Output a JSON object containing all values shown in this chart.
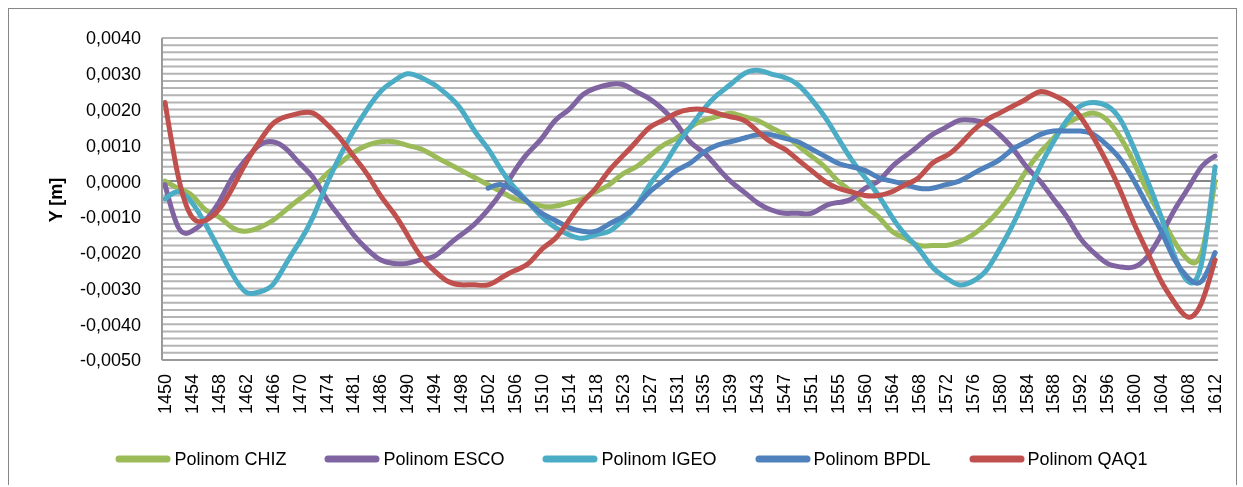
{
  "chart_data": {
    "type": "line",
    "ylabel": "Y [m]",
    "categories": [
      "1450",
      null,
      "1454",
      null,
      "1458",
      null,
      "1462",
      null,
      "1466",
      null,
      "1470",
      null,
      "1474",
      null,
      "1481",
      null,
      "1486",
      null,
      "1490",
      null,
      "1494",
      null,
      "1498",
      null,
      "1502",
      null,
      "1506",
      null,
      "1510",
      null,
      "1514",
      null,
      "1518",
      null,
      "1523",
      null,
      "1527",
      null,
      "1531",
      null,
      "1535",
      null,
      "1539",
      null,
      "1543",
      null,
      "1547",
      null,
      "1551",
      null,
      "1555",
      null,
      "1560",
      null,
      "1564",
      null,
      "1568",
      null,
      "1572",
      null,
      "1576",
      null,
      "1580",
      null,
      "1584",
      null,
      "1588",
      null,
      "1592",
      null,
      "1596",
      null,
      "1600",
      null,
      "1604",
      null,
      "1608",
      null,
      "1612"
    ],
    "series": [
      {
        "name": "Polinom CHIZ",
        "color": "#9bbb59",
        "values": [
          0,
          -0.0002,
          -0.0004,
          -0.0008,
          -0.001,
          -0.0013,
          -0.0014,
          -0.0013,
          -0.0011,
          -0.0008,
          -0.0005,
          -0.0002,
          0.0002,
          0.0005,
          0.0008,
          0.001,
          0.0011,
          0.0011,
          0.001,
          0.0009,
          0.0007,
          0.0005,
          0.0003,
          0.0001,
          -0.0001,
          -0.0003,
          -0.0005,
          -0.0006,
          -0.0007,
          -0.0007,
          -0.0006,
          -0.0005,
          -0.0003,
          -0.0001,
          0.0002,
          0.0004,
          0.0007,
          0.001,
          0.0012,
          0.0015,
          0.0017,
          0.0018,
          0.0019,
          0.0018,
          0.0017,
          0.0015,
          0.0013,
          0.001,
          0.0007,
          0.0004,
          0,
          -0.0003,
          -0.0007,
          -0.001,
          -0.0014,
          -0.0016,
          -0.0018,
          -0.0018,
          -0.0018,
          -0.0017,
          -0.0015,
          -0.0012,
          -0.0008,
          -0.0003,
          0.0003,
          0.0008,
          0.0012,
          0.0016,
          0.0018,
          0.0019,
          0.0017,
          0.0012,
          0.0005,
          -0.0003,
          -0.001,
          -0.0017,
          -0.0022,
          -0.002,
          0
        ]
      },
      {
        "name": "Polinom ESCO",
        "color": "#8064a2",
        "values": [
          -0.0001,
          -0.0013,
          -0.0014,
          -0.0011,
          -0.0006,
          0.0001,
          0.0006,
          0.001,
          0.0011,
          0.0009,
          0.0005,
          0.0001,
          -0.0005,
          -0.001,
          -0.0015,
          -0.0019,
          -0.0022,
          -0.0023,
          -0.0023,
          -0.0022,
          -0.0021,
          -0.0018,
          -0.0015,
          -0.0012,
          -0.0008,
          -0.0003,
          0.0003,
          0.0008,
          0.0012,
          0.0017,
          0.002,
          0.0024,
          0.0026,
          0.0027,
          0.0027,
          0.0025,
          0.0023,
          0.002,
          0.0016,
          0.0011,
          0.0008,
          0.0004,
          0,
          -0.0003,
          -0.0006,
          -0.0008,
          -0.0009,
          -0.0009,
          -0.0009,
          -0.0007,
          -0.0006,
          -0.0005,
          -0.0002,
          0,
          0.0004,
          0.0007,
          0.001,
          0.0013,
          0.0015,
          0.0017,
          0.0017,
          0.0016,
          0.0013,
          0.0009,
          0.0004,
          0,
          -0.0005,
          -0.001,
          -0.0016,
          -0.002,
          -0.0023,
          -0.0024,
          -0.0024,
          -0.0021,
          -0.0015,
          -0.0008,
          -0.0002,
          0.0004,
          0.0007
        ]
      },
      {
        "name": "Polinom IGEO",
        "color": "#4bacc6",
        "values": [
          -0.0005,
          -0.0003,
          -0.0006,
          -0.0012,
          -0.0019,
          -0.0026,
          -0.0031,
          -0.0031,
          -0.0029,
          -0.0023,
          -0.0017,
          -0.001,
          -0.0001,
          0.0007,
          0.0014,
          0.002,
          0.0025,
          0.0028,
          0.003,
          0.0029,
          0.0027,
          0.0024,
          0.002,
          0.0014,
          0.0009,
          0.0003,
          -0.0002,
          -0.0006,
          -0.001,
          -0.0013,
          -0.0015,
          -0.0016,
          -0.0015,
          -0.0014,
          -0.0011,
          -0.0007,
          -0.0001,
          0.0004,
          0.001,
          0.0015,
          0.002,
          0.0024,
          0.0027,
          0.003,
          0.0031,
          0.003,
          0.0029,
          0.0027,
          0.0023,
          0.0018,
          0.0012,
          0.0006,
          0.0001,
          -0.0004,
          -0.001,
          -0.0015,
          -0.0019,
          -0.0024,
          -0.0027,
          -0.0029,
          -0.0028,
          -0.0025,
          -0.0019,
          -0.0012,
          -0.0004,
          0.0004,
          0.0011,
          0.0017,
          0.0021,
          0.0022,
          0.0021,
          0.0017,
          0.0009,
          0,
          -0.001,
          -0.0021,
          -0.0028,
          -0.0023,
          0.0004
        ]
      },
      {
        "name": "Polinom BPDL",
        "color": "#4f81bd",
        "values": [
          null,
          null,
          null,
          null,
          null,
          null,
          null,
          null,
          null,
          null,
          null,
          null,
          null,
          null,
          null,
          null,
          null,
          null,
          null,
          null,
          null,
          null,
          null,
          null,
          -0.0002,
          -0.0001,
          -0.0003,
          -0.0006,
          -0.0009,
          -0.0011,
          -0.0013,
          -0.0014,
          -0.0014,
          -0.0012,
          -0.001,
          -0.0007,
          -0.0003,
          0,
          0.0003,
          0.0005,
          0.0008,
          0.001,
          0.0011,
          0.0012,
          0.0013,
          0.0013,
          0.0012,
          0.0011,
          0.0009,
          0.0007,
          0.0005,
          0.0004,
          0.0003,
          0.0001,
          0,
          -0.0001,
          -0.0002,
          -0.0002,
          -0.0001,
          0,
          0.0002,
          0.0004,
          0.0006,
          0.0009,
          0.0011,
          0.0013,
          0.0014,
          0.0014,
          0.0014,
          0.0013,
          0.001,
          0.0006,
          0,
          -0.0007,
          -0.0014,
          -0.0022,
          -0.0027,
          -0.0028,
          -0.002
        ]
      },
      {
        "name": "Polinom QAQ1",
        "color": "#c0504d",
        "values": [
          0.0022,
          0.0001,
          -0.001,
          -0.0011,
          -0.0008,
          -0.0002,
          0.0005,
          0.0011,
          0.0016,
          0.0018,
          0.0019,
          0.0019,
          0.0016,
          0.0012,
          0.0007,
          0.0002,
          -0.0004,
          -0.0009,
          -0.0015,
          -0.0021,
          -0.0025,
          -0.0028,
          -0.0029,
          -0.0029,
          -0.0029,
          -0.0027,
          -0.0025,
          -0.0023,
          -0.0019,
          -0.0016,
          -0.0011,
          -0.0006,
          -0.0002,
          0.0003,
          0.0007,
          0.0011,
          0.0015,
          0.0017,
          0.0019,
          0.002,
          0.002,
          0.0019,
          0.0018,
          0.0017,
          0.0014,
          0.0011,
          0.0009,
          0.0006,
          0.0003,
          0,
          -0.0002,
          -0.0003,
          -0.0004,
          -0.0004,
          -0.0003,
          -0.0001,
          0.0001,
          0.0005,
          0.0007,
          0.001,
          0.0014,
          0.0017,
          0.0019,
          0.0021,
          0.0023,
          0.0025,
          0.0024,
          0.0022,
          0.0018,
          0.0012,
          0.0005,
          -0.0003,
          -0.0012,
          -0.002,
          -0.0028,
          -0.0034,
          -0.0038,
          -0.0034,
          -0.0022
        ]
      }
    ],
    "ylim": [
      -0.005,
      0.004
    ],
    "yticks": [
      {
        "value": -0.005,
        "label": "-0,0050"
      },
      {
        "value": -0.0048,
        "label": null
      },
      {
        "value": -0.0046,
        "label": null
      },
      {
        "value": -0.0044,
        "label": null
      },
      {
        "value": -0.0042,
        "label": null
      },
      {
        "value": -0.004,
        "label": "-0,0040"
      },
      {
        "value": -0.0038,
        "label": null
      },
      {
        "value": -0.0036,
        "label": null
      },
      {
        "value": -0.0034,
        "label": null
      },
      {
        "value": -0.0032,
        "label": null
      },
      {
        "value": -0.003,
        "label": "-0,0030"
      },
      {
        "value": -0.0028,
        "label": null
      },
      {
        "value": -0.0026,
        "label": null
      },
      {
        "value": -0.0024,
        "label": null
      },
      {
        "value": -0.0022,
        "label": null
      },
      {
        "value": -0.002,
        "label": "-0,0020"
      },
      {
        "value": -0.0018,
        "label": null
      },
      {
        "value": -0.0016,
        "label": null
      },
      {
        "value": -0.0014,
        "label": null
      },
      {
        "value": -0.0012,
        "label": null
      },
      {
        "value": -0.001,
        "label": "-0,0010"
      },
      {
        "value": -0.0008,
        "label": null
      },
      {
        "value": -0.0006,
        "label": null
      },
      {
        "value": -0.0004,
        "label": null
      },
      {
        "value": -0.0002,
        "label": null
      },
      {
        "value": 0,
        "label": "0,0000"
      },
      {
        "value": 0.0002,
        "label": null
      },
      {
        "value": 0.0004,
        "label": null
      },
      {
        "value": 0.0006,
        "label": null
      },
      {
        "value": 0.0008,
        "label": null
      },
      {
        "value": 0.001,
        "label": "0,0010"
      },
      {
        "value": 0.0012,
        "label": null
      },
      {
        "value": 0.0014,
        "label": null
      },
      {
        "value": 0.0016,
        "label": null
      },
      {
        "value": 0.0018,
        "label": null
      },
      {
        "value": 0.002,
        "label": "0,0020"
      },
      {
        "value": 0.0022,
        "label": null
      },
      {
        "value": 0.0024,
        "label": null
      },
      {
        "value": 0.0026,
        "label": null
      },
      {
        "value": 0.0028,
        "label": null
      },
      {
        "value": 0.003,
        "label": "0,0030"
      },
      {
        "value": 0.0032,
        "label": null
      },
      {
        "value": 0.0034,
        "label": null
      },
      {
        "value": 0.0036,
        "label": null
      },
      {
        "value": 0.0038,
        "label": null
      },
      {
        "value": 0.004,
        "label": "0,0040"
      }
    ],
    "grid": "y",
    "legend": "bottom",
    "ref_lines": [
      {
        "axis": "y",
        "value": 0,
        "color": "#868686"
      }
    ]
  }
}
